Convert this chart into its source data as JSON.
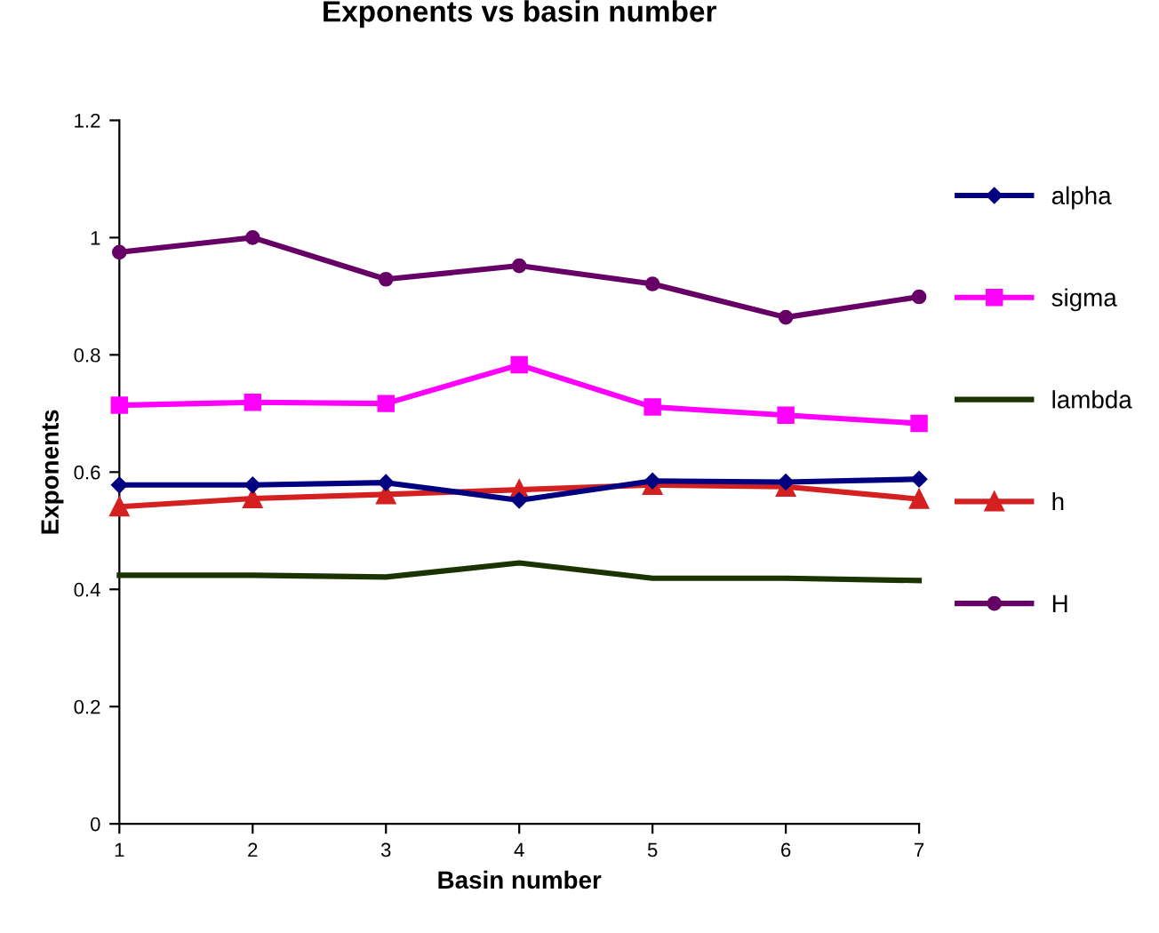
{
  "chart_data": {
    "type": "line",
    "title": "Exponents vs basin number",
    "xlabel": "Basin number",
    "ylabel": "Exponents",
    "x": [
      1,
      2,
      3,
      4,
      5,
      6,
      7
    ],
    "xlim": [
      1,
      7
    ],
    "xticks": [
      1,
      2,
      3,
      4,
      5,
      6,
      7
    ],
    "ylim": [
      0,
      1.2
    ],
    "yticks": [
      0,
      0.2,
      0.4,
      0.6,
      0.8,
      1,
      1.2
    ],
    "grid": false,
    "legend": "right",
    "series": [
      {
        "name": "alpha",
        "color": "#000080",
        "marker": "diamond",
        "values": [
          0.578,
          0.578,
          0.582,
          0.552,
          0.585,
          0.583,
          0.588
        ]
      },
      {
        "name": "sigma",
        "color": "#ff00ff",
        "marker": "square",
        "values": [
          0.714,
          0.719,
          0.717,
          0.783,
          0.711,
          0.697,
          0.683
        ]
      },
      {
        "name": "lambda",
        "color": "#1a3300",
        "marker": "none",
        "values": [
          0.424,
          0.424,
          0.421,
          0.445,
          0.419,
          0.419,
          0.415
        ]
      },
      {
        "name": "h",
        "color": "#d42020",
        "marker": "triangle",
        "values": [
          0.541,
          0.555,
          0.562,
          0.57,
          0.578,
          0.575,
          0.554
        ]
      },
      {
        "name": "H",
        "color": "#660066",
        "marker": "circle",
        "values": [
          0.975,
          1.0,
          0.929,
          0.952,
          0.921,
          0.864,
          0.899
        ]
      }
    ]
  }
}
